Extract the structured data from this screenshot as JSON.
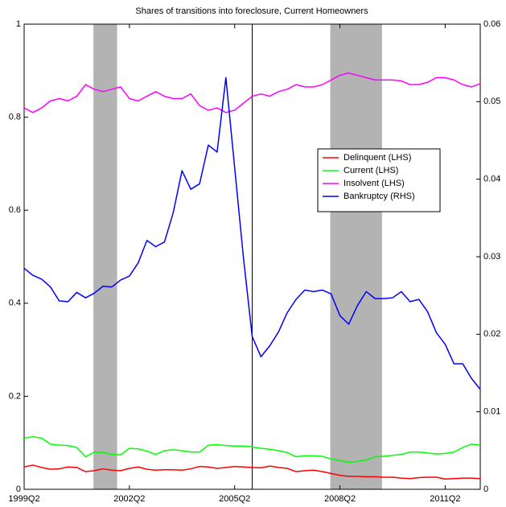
{
  "chart_data": {
    "type": "line",
    "title": "Shares of transitions into foreclosure, Current Homeowners",
    "categories": [
      "1999Q2",
      null,
      null,
      null,
      null,
      null,
      null,
      null,
      null,
      null,
      null,
      null,
      "2002Q2",
      null,
      null,
      null,
      null,
      null,
      null,
      null,
      null,
      null,
      null,
      null,
      "2005Q2",
      null,
      null,
      null,
      null,
      null,
      null,
      null,
      null,
      null,
      null,
      null,
      "2008Q2",
      null,
      null,
      null,
      null,
      null,
      null,
      null,
      null,
      null,
      null,
      null,
      "2011Q2",
      null,
      null,
      null,
      null
    ],
    "ylim": [
      0,
      1
    ],
    "yticks": [
      0,
      0.2,
      0.4,
      0.6,
      0.8,
      1
    ],
    "y2lim": [
      0,
      0.06
    ],
    "y2ticks": [
      0,
      0.01,
      0.02,
      0.03,
      0.04,
      0.05,
      0.06
    ],
    "shaded_regions": [
      [
        7.9,
        10.6
      ],
      [
        34.9,
        40.8
      ]
    ],
    "shade_color": "#b3b3b3",
    "vertical_line": 26,
    "legend": "center right",
    "series": [
      {
        "name": "Delinquent (LHS)",
        "color": "#ff0000",
        "values": [
          0.048,
          0.052,
          0.047,
          0.043,
          0.044,
          0.048,
          0.047,
          0.038,
          0.04,
          0.044,
          0.041,
          0.04,
          0.045,
          0.048,
          0.043,
          0.041,
          0.042,
          0.042,
          0.041,
          0.044,
          0.049,
          0.048,
          0.045,
          0.047,
          0.049,
          0.048,
          0.047,
          0.046,
          0.05,
          0.047,
          0.045,
          0.038,
          0.04,
          0.041,
          0.038,
          0.034,
          0.03,
          0.028,
          0.028,
          0.027,
          0.027,
          0.026,
          0.026,
          0.024,
          0.023,
          0.025,
          0.026,
          0.026,
          0.022,
          0.023,
          0.024,
          0.024,
          0.023
        ]
      },
      {
        "name": "Current (LHS)",
        "color": "#00ff00",
        "values": [
          0.11,
          0.113,
          0.11,
          0.097,
          0.095,
          0.094,
          0.09,
          0.07,
          0.08,
          0.079,
          0.075,
          0.074,
          0.088,
          0.087,
          0.082,
          0.075,
          0.083,
          0.085,
          0.083,
          0.08,
          0.08,
          0.095,
          0.096,
          0.094,
          0.093,
          0.093,
          0.091,
          0.088,
          0.086,
          0.083,
          0.079,
          0.07,
          0.072,
          0.072,
          0.071,
          0.065,
          0.062,
          0.058,
          0.06,
          0.063,
          0.07,
          0.071,
          0.073,
          0.075,
          0.08,
          0.08,
          0.078,
          0.076,
          0.077,
          0.08,
          0.09,
          0.097,
          0.095
        ]
      },
      {
        "name": "Insolvent (LHS)",
        "color": "#ff00ff",
        "values": [
          0.82,
          0.81,
          0.82,
          0.835,
          0.84,
          0.835,
          0.845,
          0.87,
          0.86,
          0.855,
          0.86,
          0.865,
          0.84,
          0.835,
          0.845,
          0.855,
          0.845,
          0.84,
          0.84,
          0.85,
          0.825,
          0.815,
          0.82,
          0.81,
          0.815,
          0.83,
          0.845,
          0.85,
          0.845,
          0.855,
          0.86,
          0.87,
          0.865,
          0.865,
          0.87,
          0.88,
          0.89,
          0.895,
          0.89,
          0.885,
          0.88,
          0.88,
          0.88,
          0.878,
          0.87,
          0.87,
          0.875,
          0.885,
          0.885,
          0.88,
          0.87,
          0.865,
          0.872
        ]
      },
      {
        "name": "Bankruptcy (RHS)",
        "color": "#0000ff",
        "axis": "y2",
        "values": [
          0.0285,
          0.0276,
          0.0271,
          0.0261,
          0.0243,
          0.0242,
          0.0254,
          0.0247,
          0.0253,
          0.0262,
          0.0261,
          0.027,
          0.0275,
          0.0292,
          0.0321,
          0.0313,
          0.0319,
          0.0357,
          0.0411,
          0.0387,
          0.0394,
          0.0444,
          0.0435,
          0.0531,
          0.0415,
          0.0299,
          0.0197,
          0.0171,
          0.0185,
          0.0203,
          0.0228,
          0.0245,
          0.0257,
          0.0255,
          0.0257,
          0.0252,
          0.0224,
          0.0213,
          0.0237,
          0.0255,
          0.0246,
          0.0246,
          0.0247,
          0.0255,
          0.0242,
          0.0245,
          0.0229,
          0.0202,
          0.0187,
          0.0162,
          0.0162,
          0.0143,
          0.0129
        ]
      }
    ]
  }
}
